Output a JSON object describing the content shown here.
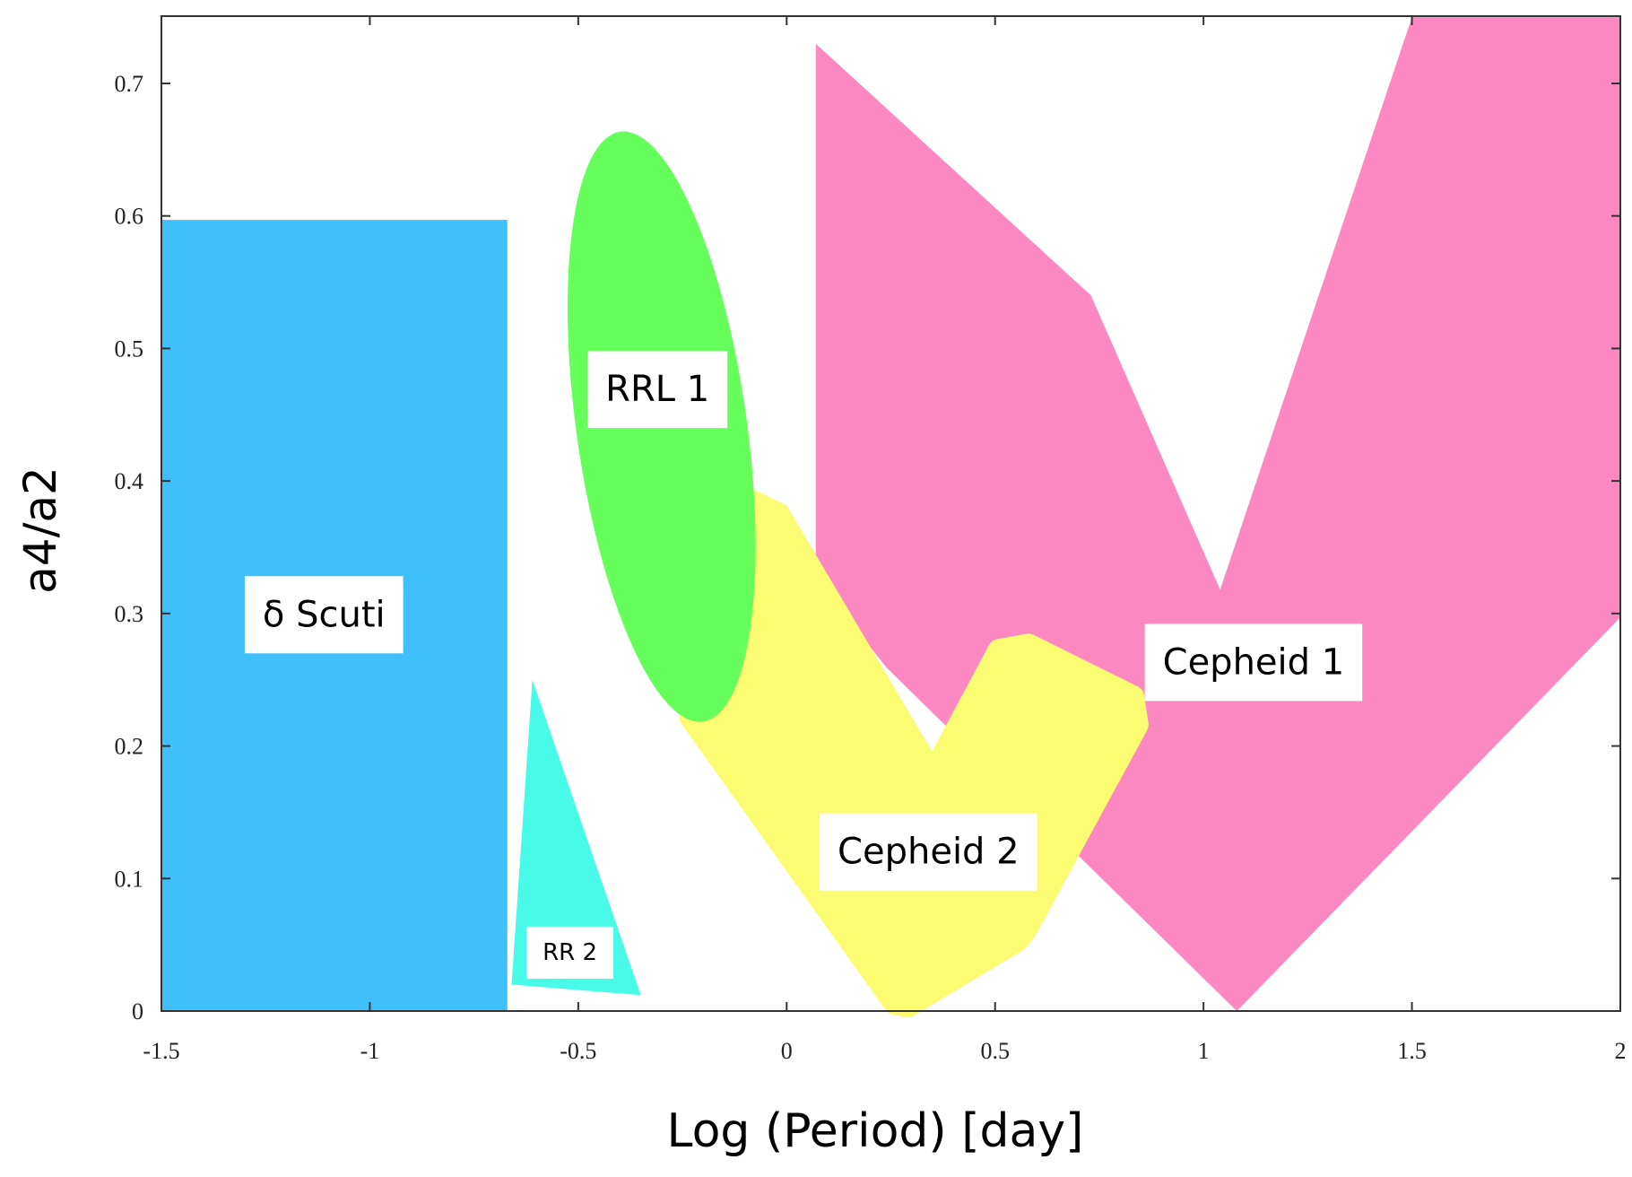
{
  "chart_data": {
    "type": "area",
    "title": "",
    "xlabel": "Log (Period) [day]",
    "ylabel": "a4/a2",
    "xlim": [
      -1.5,
      2
    ],
    "ylim": [
      0,
      0.75
    ],
    "x_ticks": [
      -1.5,
      -1,
      -0.5,
      0,
      0.5,
      1,
      1.5,
      2
    ],
    "x_tick_labels": [
      "-1.5",
      "-1",
      "-0.5",
      "0",
      "0.5",
      "1",
      "1.5",
      "2"
    ],
    "y_ticks": [
      0,
      0.1,
      0.2,
      0.3,
      0.4,
      0.5,
      0.6,
      0.7
    ],
    "y_tick_labels": [
      "0",
      "0.1",
      "0.2",
      "0.3",
      "0.4",
      "0.5",
      "0.6",
      "0.7"
    ],
    "grid": false,
    "legend": "none",
    "regions": [
      {
        "name": "δ Scuti",
        "shape": "polygon",
        "color": "#40C0FA",
        "points": [
          [
            -1.5,
            0.0
          ],
          [
            -0.67,
            0.0
          ],
          [
            -0.67,
            0.597
          ],
          [
            -1.5,
            0.597
          ]
        ],
        "label": "δ Scuti",
        "label_at": [
          -1.11,
          0.3
        ]
      },
      {
        "name": "RR 2",
        "shape": "polygon",
        "color": "#48FAE8",
        "points": [
          [
            -0.61,
            0.25
          ],
          [
            -0.35,
            0.012
          ],
          [
            -0.66,
            0.02
          ]
        ],
        "label": "RR 2",
        "label_at": [
          -0.52,
          0.045
        ]
      },
      {
        "name": "Cepheid 1",
        "shape": "polygon",
        "color": "#FC88C2",
        "points": [
          [
            0.07,
            0.73
          ],
          [
            0.73,
            0.54
          ],
          [
            1.04,
            0.318
          ],
          [
            1.5,
            0.75
          ],
          [
            2.0,
            0.75
          ],
          [
            2.0,
            0.297
          ],
          [
            1.08,
            0.0
          ],
          [
            0.24,
            0.259
          ],
          [
            0.07,
            0.326
          ]
        ],
        "label": "Cepheid 1",
        "label_at": [
          1.12,
          0.264
        ]
      },
      {
        "name": "Cepheid 2",
        "shape": "polygon",
        "color": "#FBFC72",
        "points": [
          [
            -0.08,
            0.384
          ],
          [
            -0.02,
            0.375
          ],
          [
            0.35,
            0.178
          ],
          [
            0.51,
            0.272
          ],
          [
            0.58,
            0.276
          ],
          [
            0.83,
            0.237
          ],
          [
            0.84,
            0.216
          ],
          [
            0.57,
            0.06
          ],
          [
            0.55,
            0.053
          ],
          [
            0.29,
            0.004
          ],
          [
            0.26,
            0.006
          ],
          [
            -0.23,
            0.222
          ]
        ],
        "label": "Cepheid 2",
        "label_at": [
          0.34,
          0.121
        ]
      },
      {
        "name": "RRL 1",
        "shape": "ellipse",
        "color": "#66FE5A",
        "center": [
          -0.3,
          0.441
        ],
        "rx": 0.405,
        "ry": 0.079,
        "rotation_deg": -70,
        "label": "RRL 1",
        "label_at": [
          -0.31,
          0.47
        ]
      }
    ]
  }
}
